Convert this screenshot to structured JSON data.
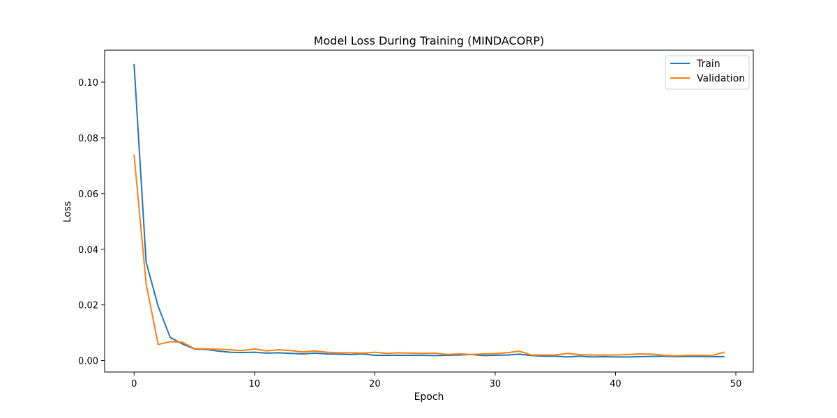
{
  "chart_data": {
    "type": "line",
    "title": "Model Loss During Training (MINDACORP)",
    "xlabel": "Epoch",
    "ylabel": "Loss",
    "xlim": [
      -2.45,
      51.45
    ],
    "ylim": [
      -0.0041,
      0.1115
    ],
    "xticks": [
      0,
      10,
      20,
      30,
      40,
      50
    ],
    "yticks": [
      0.0,
      0.02,
      0.04,
      0.06,
      0.08,
      0.1
    ],
    "xtick_labels": [
      "0",
      "10",
      "20",
      "30",
      "40",
      "50"
    ],
    "ytick_labels": [
      "0.00",
      "0.02",
      "0.04",
      "0.06",
      "0.08",
      "0.10"
    ],
    "grid": false,
    "legend_position": "top-right",
    "x": [
      0,
      1,
      2,
      3,
      4,
      5,
      6,
      7,
      8,
      9,
      10,
      11,
      12,
      13,
      14,
      15,
      16,
      17,
      18,
      19,
      20,
      21,
      22,
      23,
      24,
      25,
      26,
      27,
      28,
      29,
      30,
      31,
      32,
      33,
      34,
      35,
      36,
      37,
      38,
      39,
      40,
      41,
      42,
      43,
      44,
      45,
      46,
      47,
      48,
      49
    ],
    "series": [
      {
        "name": "Train",
        "color": "#1f77b4",
        "values": [
          0.1063,
          0.0353,
          0.0195,
          0.0083,
          0.006,
          0.0042,
          0.004,
          0.0034,
          0.003,
          0.0029,
          0.003,
          0.0027,
          0.0028,
          0.0026,
          0.0024,
          0.0027,
          0.0024,
          0.0023,
          0.0022,
          0.0024,
          0.0019,
          0.0019,
          0.0019,
          0.0019,
          0.0019,
          0.0018,
          0.0019,
          0.002,
          0.0022,
          0.0018,
          0.0019,
          0.002,
          0.0023,
          0.0018,
          0.0016,
          0.0016,
          0.0013,
          0.0016,
          0.0013,
          0.0014,
          0.0013,
          0.0013,
          0.0014,
          0.0015,
          0.0016,
          0.0014,
          0.0015,
          0.0015,
          0.0014,
          0.0014
        ]
      },
      {
        "name": "Validation",
        "color": "#ff7f0e",
        "values": [
          0.0738,
          0.0275,
          0.0058,
          0.0068,
          0.0066,
          0.0043,
          0.0042,
          0.0041,
          0.0039,
          0.0036,
          0.0042,
          0.0035,
          0.0039,
          0.0036,
          0.0031,
          0.0035,
          0.003,
          0.0028,
          0.0028,
          0.0027,
          0.003,
          0.0026,
          0.0028,
          0.0027,
          0.0026,
          0.0027,
          0.0022,
          0.0024,
          0.0022,
          0.0024,
          0.0025,
          0.0028,
          0.0034,
          0.002,
          0.002,
          0.002,
          0.0026,
          0.0022,
          0.002,
          0.002,
          0.002,
          0.0022,
          0.0024,
          0.0023,
          0.0019,
          0.0017,
          0.0019,
          0.0019,
          0.0018,
          0.003
        ]
      }
    ]
  }
}
